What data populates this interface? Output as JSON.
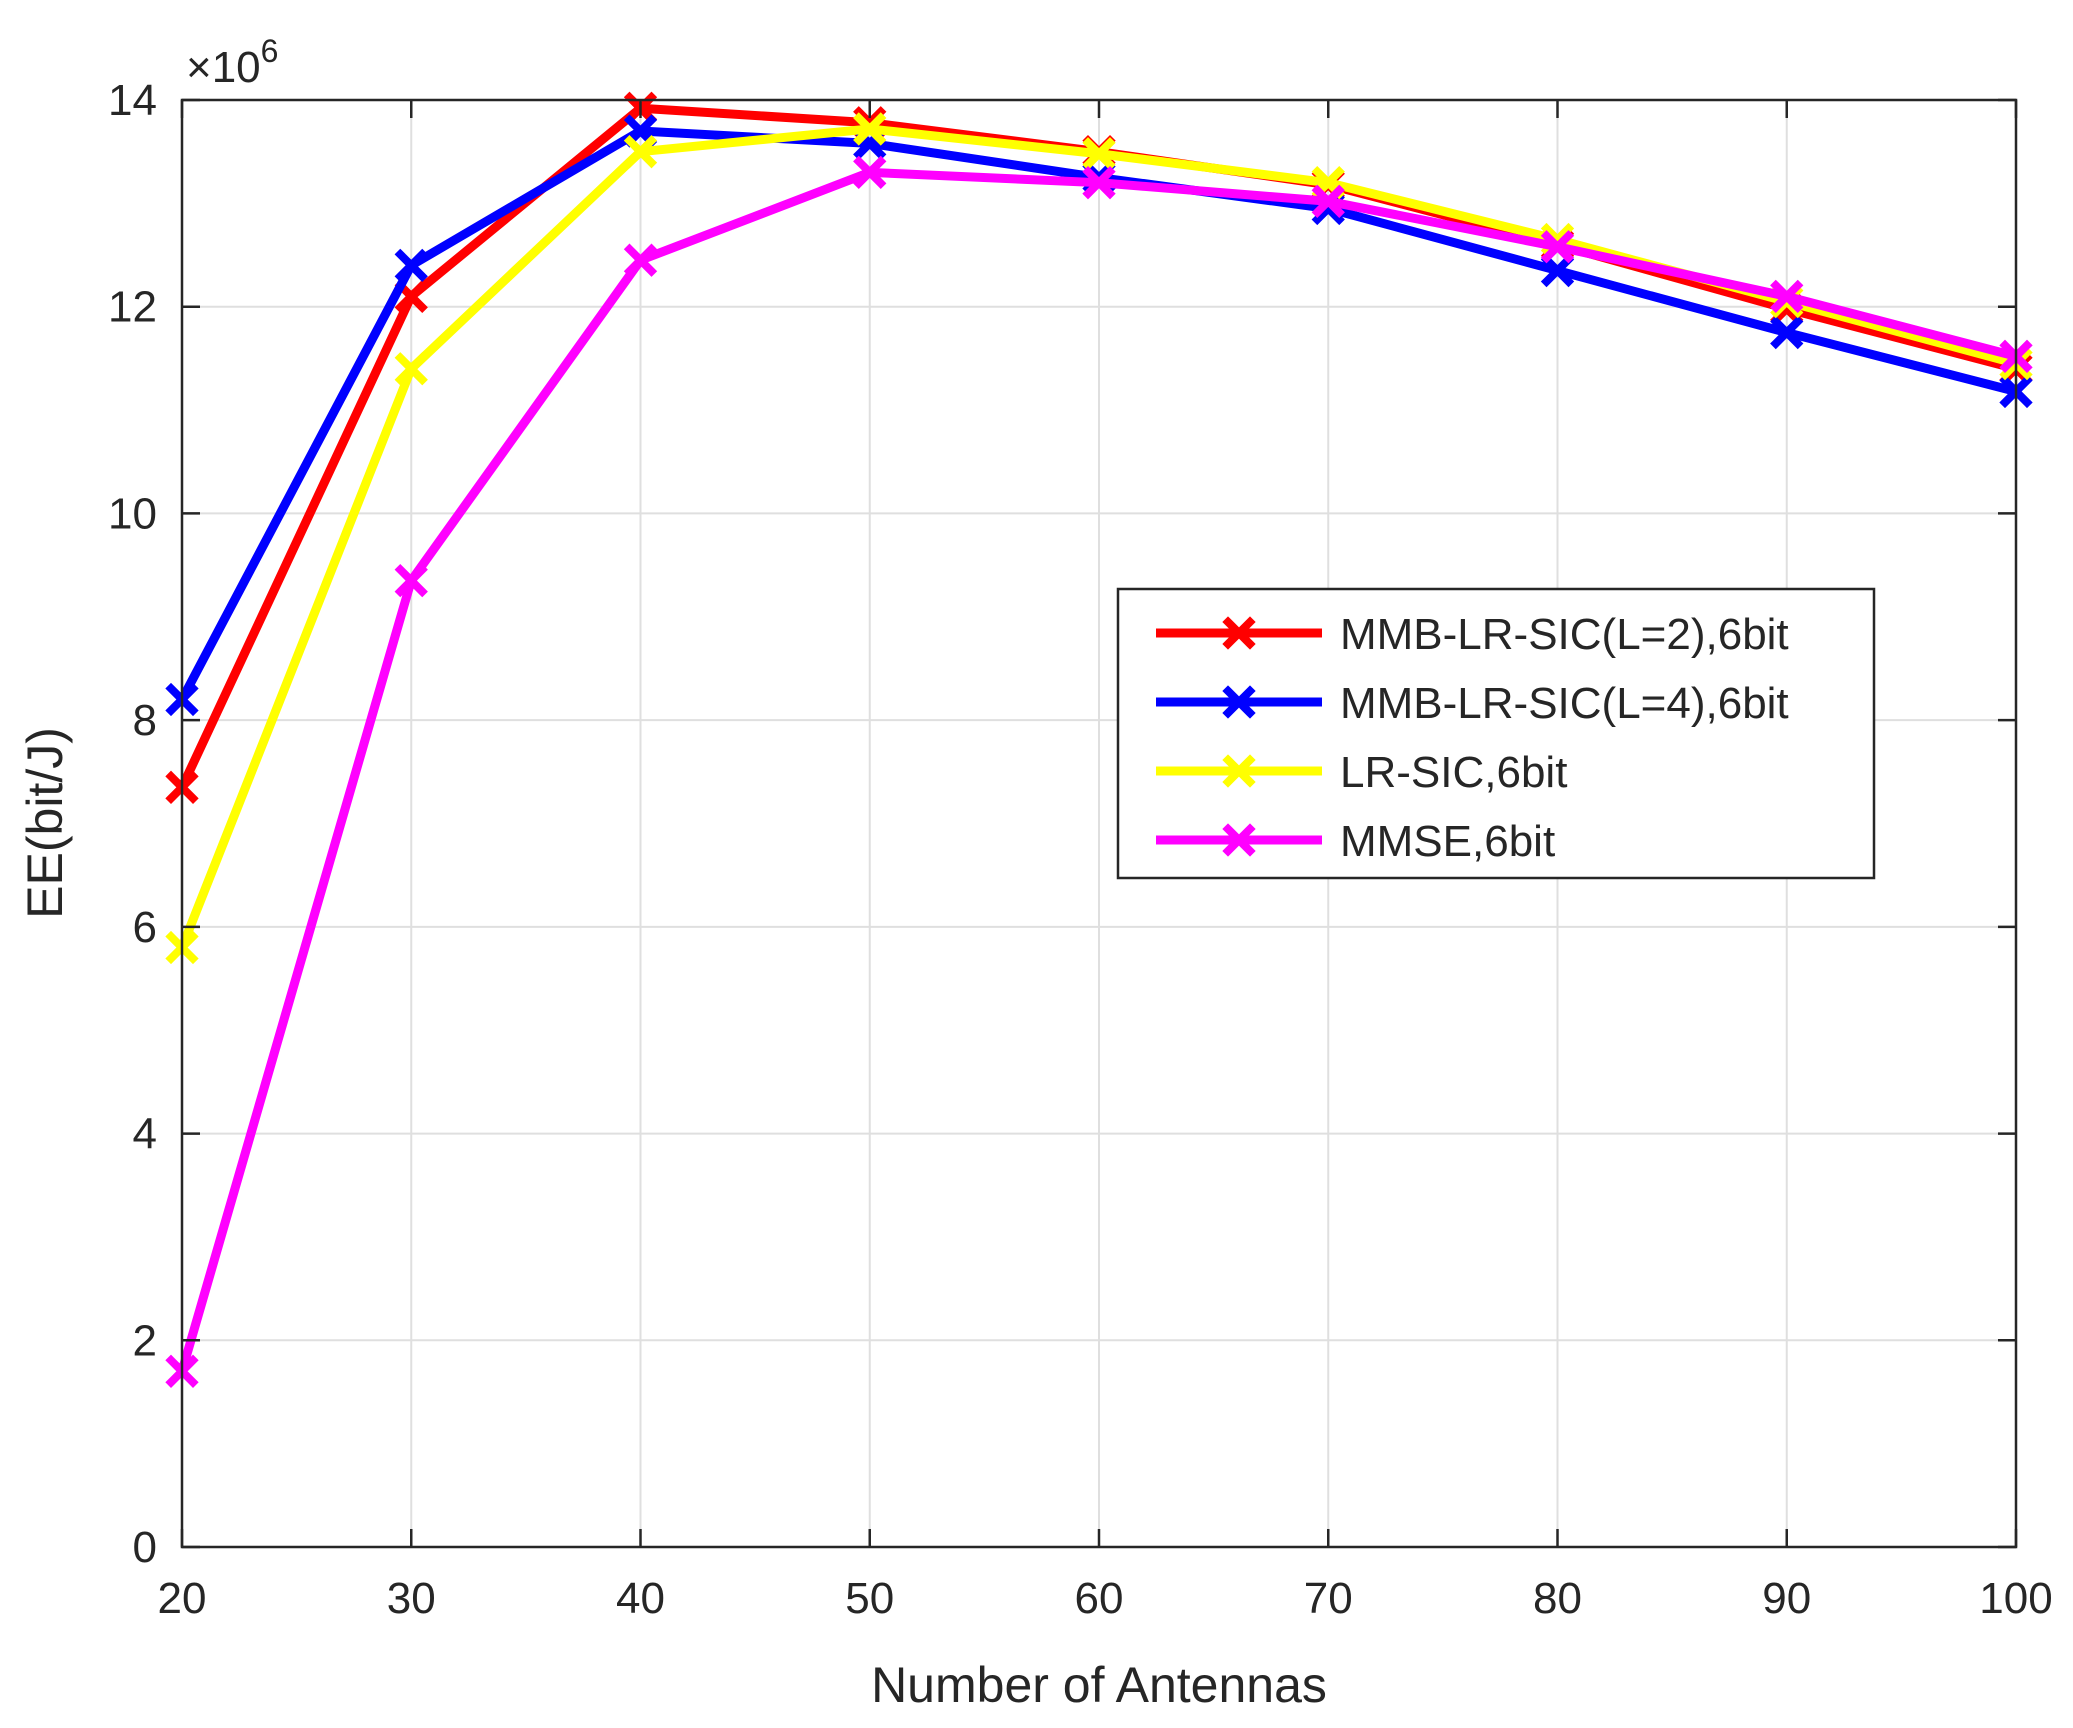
{
  "chart_data": {
    "type": "line",
    "title": "",
    "xlabel": "Number of Antennas",
    "ylabel": "EE(bit/J)",
    "exponent_label": "×10",
    "exponent_power": "6",
    "x": [
      20,
      30,
      40,
      50,
      60,
      70,
      80,
      90,
      100
    ],
    "xlim": [
      20,
      100
    ],
    "ylim": [
      0,
      14
    ],
    "xticks": [
      "20",
      "30",
      "40",
      "50",
      "60",
      "70",
      "80",
      "90",
      "100"
    ],
    "yticks": [
      "0",
      "2",
      "4",
      "6",
      "8",
      "10",
      "12",
      "14"
    ],
    "grid": true,
    "legend_position": "right-center",
    "series": [
      {
        "name": "MMB-LR-SIC(L=2),6bit",
        "color": "#ff0000",
        "marker": "x",
        "values": [
          7.35,
          12.1,
          13.92,
          13.78,
          13.5,
          13.18,
          12.6,
          11.98,
          11.4
        ]
      },
      {
        "name": "MMB-LR-SIC(L=4),6bit",
        "color": "#0000ff",
        "marker": "x",
        "values": [
          8.2,
          12.4,
          13.7,
          13.58,
          13.25,
          12.95,
          12.35,
          11.75,
          11.18
        ]
      },
      {
        "name": "LR-SIC,6bit",
        "color": "#ffff00",
        "marker": "x",
        "values": [
          5.8,
          11.4,
          13.5,
          13.72,
          13.48,
          13.2,
          12.65,
          12.05,
          11.45
        ]
      },
      {
        "name": "MMSE,6bit",
        "color": "#ff00ff",
        "marker": "x",
        "values": [
          1.7,
          9.35,
          12.45,
          13.3,
          13.2,
          13.02,
          12.58,
          12.1,
          11.52
        ]
      }
    ]
  }
}
